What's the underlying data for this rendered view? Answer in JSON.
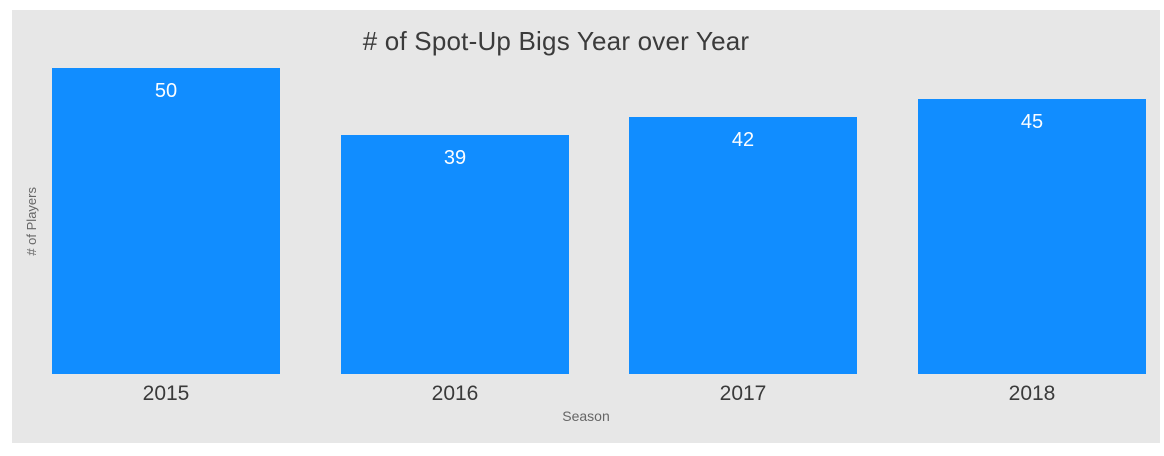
{
  "chart": {
    "title": "# of Spot-Up Bigs Year over Year",
    "y_axis_label": "# of Players",
    "x_axis_label": "Season",
    "colors": {
      "bar": "#118DFF",
      "canvas_background": "#e7e7e7",
      "title_text": "#3b3b3b",
      "tick_text": "#3a3a3a",
      "axis_title_text": "#666666",
      "data_label_text": "#ffffff"
    }
  },
  "chart_data": {
    "type": "bar",
    "title": "# of Spot-Up Bigs Year over Year",
    "categories": [
      "2015",
      "2016",
      "2017",
      "2018"
    ],
    "values": [
      50,
      39,
      42,
      45
    ],
    "xlabel": "Season",
    "ylabel": "# of Players",
    "ylim": [
      0,
      50
    ],
    "grid": false,
    "legend": "none",
    "data_labels": true,
    "bar_color": "#118DFF"
  }
}
